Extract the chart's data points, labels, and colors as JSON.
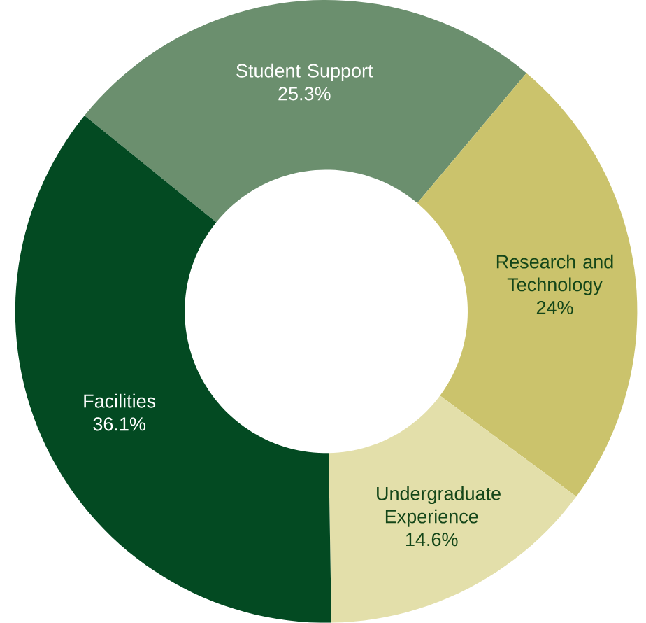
{
  "chart_data": {
    "type": "donut",
    "categories": [
      "Student Support",
      "Research and Technology",
      "Undergraduate Experience",
      "Facilities"
    ],
    "values": [
      25.3,
      24,
      14.6,
      36.1
    ],
    "value_labels": [
      "25.3%",
      "24%",
      "14.6%",
      "36.1%"
    ],
    "colors": [
      "#6b8f6e",
      "#cbc36c",
      "#e3dfaa",
      "#034a22"
    ]
  }
}
